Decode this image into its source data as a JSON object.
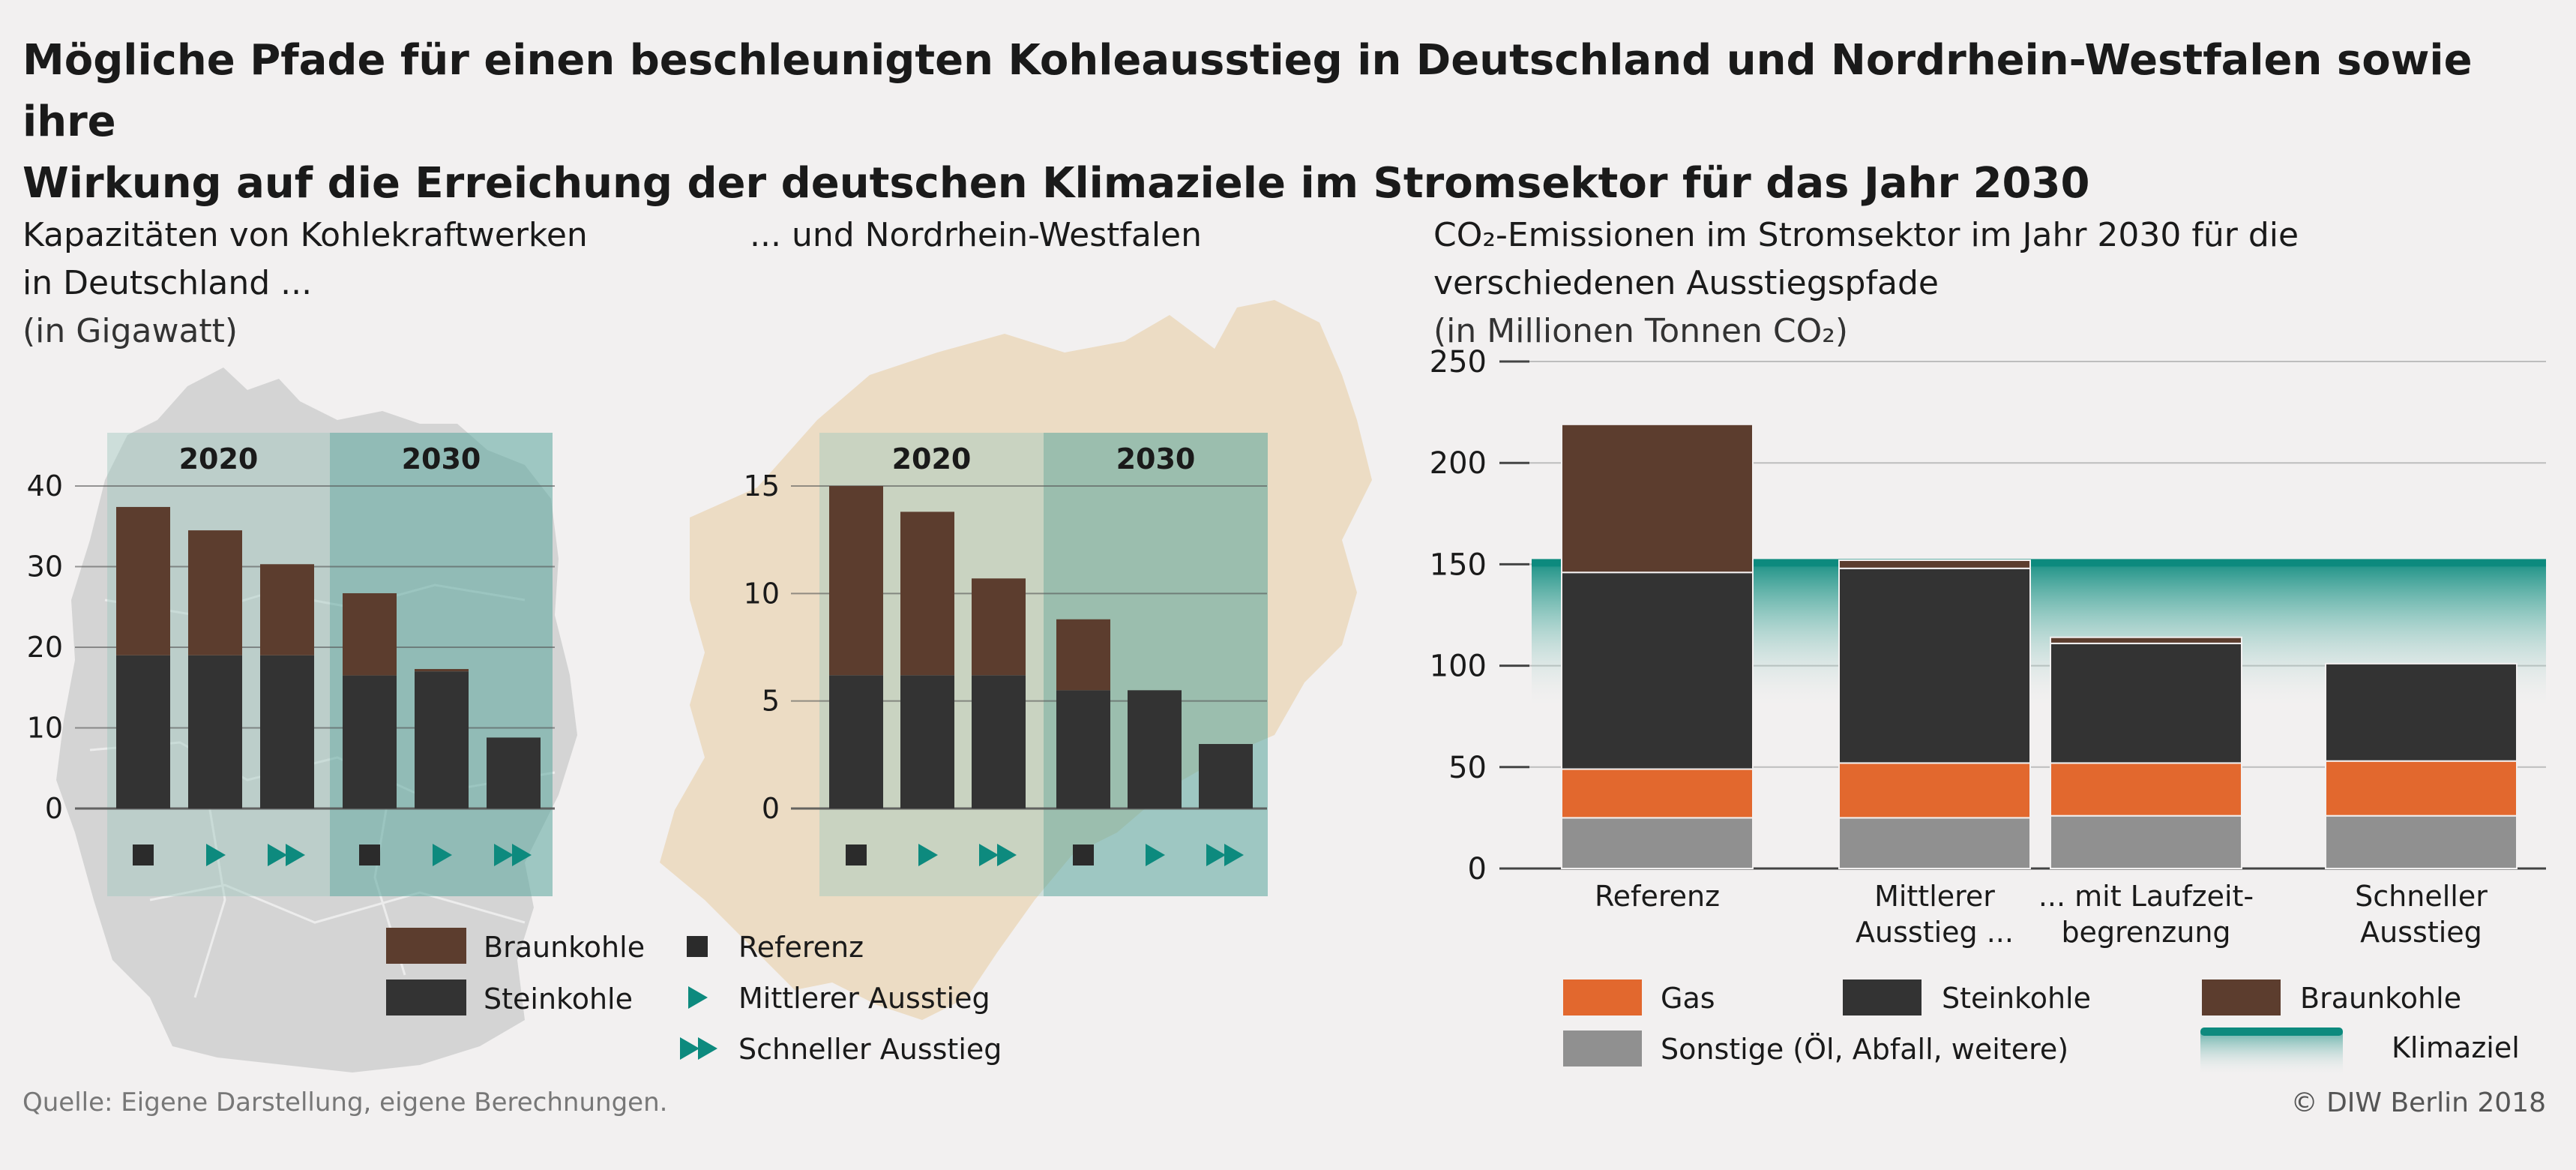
{
  "title_line1": "Mögliche Pfade für einen beschleunigten Kohleausstieg in Deutschland und Nordrhein-Westfalen sowie ihre",
  "title_line2": "Wirkung auf die Erreichung der deutschen Klimaziele im Stromsektor für das Jahr 2030",
  "panel1": {
    "title_line1": "Kapazitäten von Kohlekraftwerken",
    "title_line2": "in Deutschland ...",
    "unit": "(in Gigawatt)"
  },
  "panel2": {
    "title_line1": "... und Nordrhein-Westfalen"
  },
  "panel3": {
    "title_line1": "CO₂-Emissionen im Stromsektor im Jahr 2030 für die",
    "title_line2a": "verschiedenen Ausstiegspfade",
    "title_line2b": " (in Millionen Tonnen CO₂)"
  },
  "source": "Quelle: Eigene Darstellung, eigene Berechnungen.",
  "copyright": "© DIW Berlin 2018",
  "colors": {
    "braunkohle": "#5c3d2e",
    "steinkohle": "#333333",
    "gas": "#e2682e",
    "sonstige": "#909090",
    "teal": "#0d8a7e",
    "map_de": "#d4d4d4",
    "map_nrw": "#ecdcc4"
  },
  "legend_left": {
    "braunkohle": "Braunkohle",
    "steinkohle": "Steinkohle",
    "referenz": "Referenz",
    "mittlerer": "Mittlerer Ausstieg",
    "schneller": "Schneller Ausstieg"
  },
  "legend_right": {
    "gas": "Gas",
    "steinkohle": "Steinkohle",
    "braunkohle": "Braunkohle",
    "sonstige": "Sonstige (Öl, Abfall, weitere)",
    "klimaziel": "Klimaziel"
  },
  "chart_data": [
    {
      "type": "bar",
      "stacked": true,
      "year_groups": [
        "2020",
        "2030"
      ],
      "categories": [
        "Referenz",
        "Mittlerer Ausstieg",
        "Schneller Ausstieg",
        "Referenz",
        "Mittlerer Ausstieg",
        "Schneller Ausstieg"
      ],
      "series": [
        {
          "name": "Steinkohle",
          "values": [
            19,
            19,
            19,
            16.5,
            17,
            8.8
          ]
        },
        {
          "name": "Braunkohle",
          "values": [
            18.4,
            15.5,
            11.3,
            10.2,
            0.3,
            0
          ]
        }
      ],
      "yticks": [
        0,
        10,
        20,
        30,
        40
      ],
      "ylim": [
        0,
        40
      ]
    },
    {
      "type": "bar",
      "stacked": true,
      "year_groups": [
        "2020",
        "2030"
      ],
      "categories": [
        "Referenz",
        "Mittlerer Ausstieg",
        "Schneller Ausstieg",
        "Referenz",
        "Mittlerer Ausstieg",
        "Schneller Ausstieg"
      ],
      "series": [
        {
          "name": "Steinkohle",
          "values": [
            6.2,
            6.2,
            6.2,
            5.5,
            5.5,
            3
          ]
        },
        {
          "name": "Braunkohle",
          "values": [
            8.8,
            7.6,
            4.5,
            3.3,
            0,
            0
          ]
        }
      ],
      "yticks": [
        0,
        5,
        10,
        15
      ],
      "ylim": [
        0,
        15
      ]
    },
    {
      "type": "bar",
      "stacked": true,
      "categories": [
        "Referenz",
        "Mittlerer Ausstieg ...",
        "... mit Laufzeitbegrenzung",
        "Schneller Ausstieg"
      ],
      "category_labels": [
        [
          "Referenz"
        ],
        [
          "Mittlerer",
          "Ausstieg ..."
        ],
        [
          "... mit Laufzeit-",
          "begrenzung"
        ],
        [
          "Schneller",
          "Ausstieg"
        ]
      ],
      "series": [
        {
          "name": "Sonstige (Öl, Abfall, weitere)",
          "values": [
            25,
            25,
            26,
            26
          ]
        },
        {
          "name": "Gas",
          "values": [
            24,
            27,
            26,
            27
          ]
        },
        {
          "name": "Steinkohle",
          "values": [
            97,
            96,
            59,
            48
          ]
        },
        {
          "name": "Braunkohle",
          "values": [
            73,
            4,
            3,
            0
          ]
        }
      ],
      "klimaziel": 150,
      "yticks": [
        0,
        50,
        100,
        150,
        200,
        250
      ],
      "ylim": [
        0,
        250
      ]
    }
  ]
}
